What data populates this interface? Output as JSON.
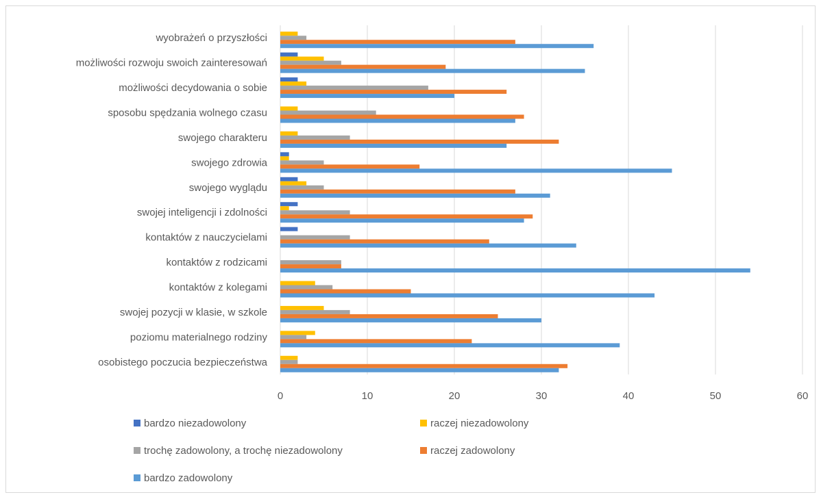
{
  "chart_data": {
    "type": "bar",
    "orientation": "horizontal",
    "title": "",
    "xlabel": "",
    "ylabel": "",
    "xlim": [
      0,
      60
    ],
    "xticks": [
      0,
      10,
      20,
      30,
      40,
      50,
      60
    ],
    "grid": true,
    "legend_position": "bottom",
    "categories": [
      "wyobrażeń o przyszłości",
      "możliwości rozwoju swoich zainteresowań",
      "możliwości decydowania o sobie",
      "sposobu spędzania wolnego czasu",
      "swojego charakteru",
      "swojego zdrowia",
      "swojego wyglądu",
      "swojej inteligencji i zdolności",
      "kontaktów z nauczycielami",
      "kontaktów z rodzicami",
      "kontaktów z kolegami",
      "swojej pozycji w klasie, w szkole",
      "poziomu materialnego rodziny",
      "osobistego poczucia bezpieczeństwa"
    ],
    "series": [
      {
        "name": "bardzo niezadowolony",
        "color": "#4472c4",
        "values": [
          0,
          2,
          2,
          0,
          0,
          1,
          2,
          2,
          2,
          0,
          0,
          0,
          0,
          0
        ]
      },
      {
        "name": "raczej niezadowolony",
        "color": "#ffc000",
        "values": [
          2,
          5,
          3,
          2,
          2,
          1,
          3,
          1,
          0,
          0,
          4,
          5,
          4,
          2
        ]
      },
      {
        "name": "trochę zadowolony, a trochę niezadowolony",
        "color": "#a5a5a5",
        "values": [
          3,
          7,
          17,
          11,
          8,
          5,
          5,
          8,
          8,
          7,
          6,
          8,
          3,
          2
        ]
      },
      {
        "name": "raczej zadowolony",
        "color": "#ed7d31",
        "values": [
          27,
          19,
          26,
          28,
          32,
          16,
          27,
          29,
          24,
          7,
          15,
          25,
          22,
          33
        ]
      },
      {
        "name": "bardzo zadowolony",
        "color": "#5b9bd5",
        "values": [
          36,
          35,
          20,
          27,
          26,
          45,
          31,
          28,
          34,
          54,
          43,
          30,
          39,
          32
        ]
      }
    ]
  }
}
